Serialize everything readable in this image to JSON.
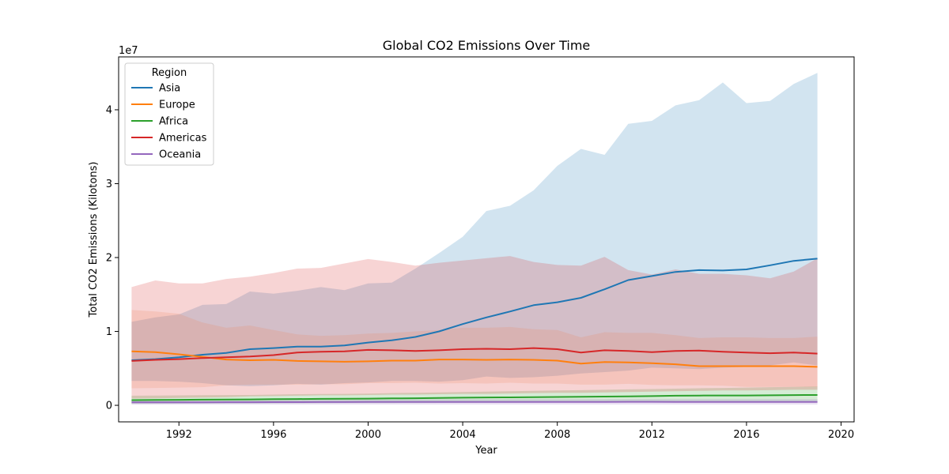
{
  "chart_data": {
    "type": "line",
    "title": "Global CO2 Emissions Over Time",
    "xlabel": "Year",
    "ylabel": "Total CO2 Emissions (Kilotons)",
    "y_offset_label": "1e7",
    "xlim": [
      1989.45,
      2020.55
    ],
    "ylim": [
      -2240000,
      47160000
    ],
    "x_ticks": [
      1992,
      1996,
      2000,
      2004,
      2008,
      2012,
      2016,
      2020
    ],
    "y_ticks": [
      0,
      10000000,
      20000000,
      30000000,
      40000000
    ],
    "y_tick_labels": [
      "0",
      "1",
      "2",
      "3",
      "4"
    ],
    "grid": false,
    "legend": {
      "title": "Region",
      "placement": "top-left"
    },
    "x": [
      1990,
      1991,
      1992,
      1993,
      1994,
      1995,
      1996,
      1997,
      1998,
      1999,
      2000,
      2001,
      2002,
      2003,
      2004,
      2005,
      2006,
      2007,
      2008,
      2009,
      2010,
      2011,
      2012,
      2013,
      2014,
      2015,
      2016,
      2017,
      2018,
      2019
    ],
    "series": [
      {
        "name": "Asia",
        "color": "#1f77b4",
        "values": [
          6100000,
          6250000,
          6500000,
          6850000,
          7100000,
          7600000,
          7750000,
          7950000,
          7950000,
          8100000,
          8500000,
          8800000,
          9250000,
          10000000,
          11000000,
          11900000,
          12700000,
          13550000,
          13950000,
          14550000,
          15700000,
          16950000,
          17500000,
          18050000,
          18300000,
          18250000,
          18400000,
          18950000,
          19550000,
          19850000
        ],
        "lower": [
          3300000,
          3300000,
          3200000,
          3000000,
          2700000,
          2600000,
          2700000,
          2900000,
          2800000,
          3000000,
          3100000,
          3300000,
          3300000,
          3200000,
          3400000,
          3900000,
          3700000,
          3800000,
          4000000,
          4300000,
          4500000,
          4700000,
          5100000,
          5000000,
          4900000,
          5100000,
          5200000,
          5400000,
          5800000,
          5400000
        ],
        "upper": [
          11300000,
          11900000,
          12300000,
          13600000,
          13700000,
          15400000,
          15100000,
          15500000,
          16000000,
          15600000,
          16500000,
          16600000,
          18500000,
          20600000,
          22800000,
          26300000,
          27000000,
          29100000,
          32400000,
          34700000,
          33900000,
          38100000,
          38500000,
          40600000,
          41300000,
          43700000,
          40900000,
          41200000,
          43500000,
          45000000
        ]
      },
      {
        "name": "Europe",
        "color": "#ff7f0e",
        "values": [
          7300000,
          7200000,
          6900000,
          6550000,
          6200000,
          6100000,
          6150000,
          6000000,
          5950000,
          5900000,
          5950000,
          6050000,
          6050000,
          6200000,
          6200000,
          6150000,
          6200000,
          6150000,
          6050000,
          5650000,
          5850000,
          5800000,
          5700000,
          5550000,
          5300000,
          5300000,
          5300000,
          5300000,
          5300000,
          5200000
        ],
        "lower": [
          2300000,
          2350000,
          2400000,
          2450000,
          2700000,
          2800000,
          2800000,
          2800000,
          2850000,
          2850000,
          3000000,
          3000000,
          3050000,
          2950000,
          3000000,
          2950000,
          3050000,
          2950000,
          2950000,
          2800000,
          2800000,
          2900000,
          2750000,
          2700000,
          2700000,
          2650000,
          2500000,
          2500000,
          2500000,
          2500000
        ],
        "upper": [
          12900000,
          12700000,
          12400000,
          11200000,
          10500000,
          10800000,
          10200000,
          9600000,
          9400000,
          9500000,
          9700000,
          9800000,
          10000000,
          10200000,
          10500000,
          10500000,
          10600000,
          10300000,
          10200000,
          9200000,
          9900000,
          9800000,
          9800000,
          9500000,
          9100000,
          9200000,
          9200000,
          9100000,
          9100000,
          9300000
        ],
        "fill_color": "#f39a6b"
      },
      {
        "name": "Africa",
        "color": "#2ca02c",
        "values": [
          700000,
          720000,
          740000,
          760000,
          780000,
          800000,
          830000,
          850000,
          870000,
          880000,
          900000,
          940000,
          960000,
          1000000,
          1030000,
          1060000,
          1080000,
          1100000,
          1130000,
          1150000,
          1180000,
          1200000,
          1250000,
          1300000,
          1320000,
          1330000,
          1330000,
          1350000,
          1380000,
          1400000
        ],
        "lower": [
          200000,
          210000,
          220000,
          230000,
          240000,
          250000,
          260000,
          270000,
          280000,
          290000,
          300000,
          310000,
          320000,
          330000,
          340000,
          350000,
          360000,
          370000,
          380000,
          390000,
          400000,
          410000,
          420000,
          430000,
          440000,
          450000,
          460000,
          470000,
          480000,
          490000
        ],
        "upper": [
          1300000,
          1320000,
          1340000,
          1360000,
          1380000,
          1400000,
          1450000,
          1500000,
          1520000,
          1550000,
          1580000,
          1650000,
          1700000,
          1750000,
          1800000,
          1850000,
          1900000,
          1950000,
          2000000,
          2050000,
          2100000,
          2150000,
          2200000,
          2250000,
          2300000,
          2350000,
          2400000,
          2450000,
          2500000,
          2550000
        ]
      },
      {
        "name": "Americas",
        "color": "#d62728",
        "values": [
          6000000,
          6150000,
          6250000,
          6400000,
          6500000,
          6600000,
          6800000,
          7150000,
          7250000,
          7300000,
          7500000,
          7450000,
          7350000,
          7450000,
          7600000,
          7650000,
          7600000,
          7750000,
          7600000,
          7150000,
          7450000,
          7350000,
          7200000,
          7350000,
          7400000,
          7250000,
          7150000,
          7050000,
          7150000,
          7000000
        ],
        "lower": [
          900000,
          950000,
          1000000,
          1050000,
          1100000,
          1200000,
          1250000,
          1300000,
          1350000,
          1350000,
          1400000,
          1450000,
          1450000,
          1500000,
          1550000,
          1550000,
          1600000,
          1650000,
          1700000,
          1700000,
          1750000,
          1800000,
          1850000,
          1900000,
          1950000,
          2000000,
          2000000,
          2050000,
          2100000,
          2100000
        ],
        "upper": [
          16000000,
          16900000,
          16500000,
          16500000,
          17100000,
          17400000,
          17900000,
          18500000,
          18600000,
          19200000,
          19800000,
          19400000,
          18900000,
          19300000,
          19600000,
          19900000,
          20200000,
          19400000,
          19000000,
          18900000,
          20100000,
          18300000,
          17700000,
          18400000,
          17800000,
          17800000,
          17600000,
          17200000,
          18100000,
          19900000
        ]
      },
      {
        "name": "Oceania",
        "color": "#9467bd",
        "values": [
          400000,
          405000,
          410000,
          415000,
          420000,
          425000,
          430000,
          435000,
          440000,
          445000,
          450000,
          450000,
          455000,
          455000,
          460000,
          460000,
          465000,
          465000,
          470000,
          470000,
          470000,
          475000,
          475000,
          470000,
          470000,
          470000,
          470000,
          470000,
          470000,
          470000
        ],
        "lower": [
          100000,
          100000,
          100000,
          100000,
          100000,
          100000,
          100000,
          100000,
          100000,
          100000,
          100000,
          100000,
          100000,
          100000,
          100000,
          100000,
          100000,
          100000,
          100000,
          100000,
          100000,
          100000,
          100000,
          100000,
          100000,
          100000,
          100000,
          100000,
          100000,
          100000
        ],
        "upper": [
          700000,
          710000,
          720000,
          730000,
          740000,
          750000,
          760000,
          770000,
          780000,
          790000,
          800000,
          800000,
          810000,
          810000,
          820000,
          820000,
          830000,
          830000,
          840000,
          840000,
          840000,
          850000,
          850000,
          840000,
          840000,
          840000,
          840000,
          840000,
          840000,
          840000
        ]
      }
    ]
  }
}
